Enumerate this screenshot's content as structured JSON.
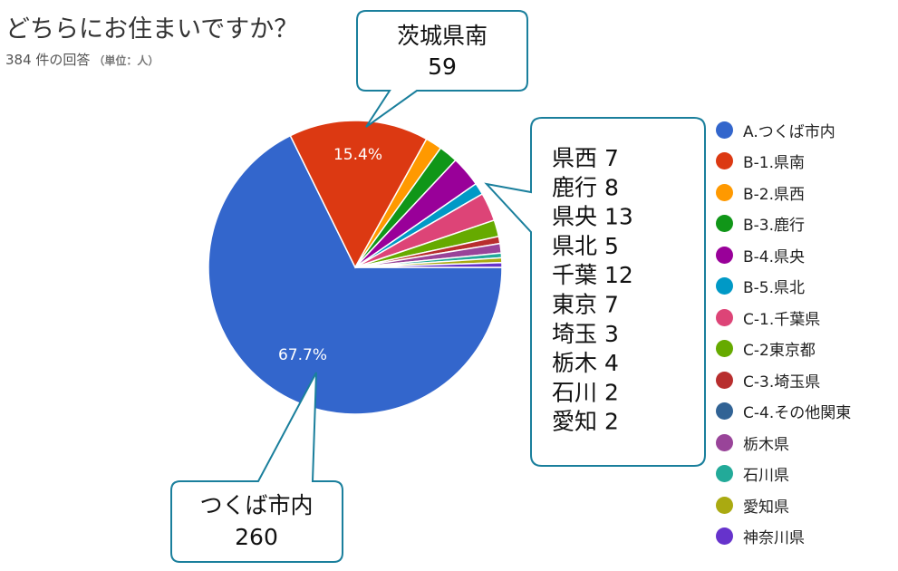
{
  "header": {
    "title": "どちらにお住まいですか？",
    "response_count": "384 件の回答",
    "unit_note": "（単位：人）"
  },
  "chart_data": {
    "type": "pie",
    "total": 384,
    "slices": [
      {
        "label": "A.つくば市内",
        "value": 260,
        "color": "#3366cc"
      },
      {
        "label": "B-1.県南",
        "value": 59,
        "color": "#dc3912"
      },
      {
        "label": "B-2.県西",
        "value": 7,
        "color": "#ff9900"
      },
      {
        "label": "B-3.鹿行",
        "value": 8,
        "color": "#109618"
      },
      {
        "label": "B-4.県央",
        "value": 13,
        "color": "#990099"
      },
      {
        "label": "B-5.県北",
        "value": 5,
        "color": "#0099c6"
      },
      {
        "label": "C-1.千葉県",
        "value": 12,
        "color": "#dd4477"
      },
      {
        "label": "C-2東京都",
        "value": 7,
        "color": "#66aa00"
      },
      {
        "label": "C-3.埼玉県",
        "value": 3,
        "color": "#b82e2e"
      },
      {
        "label": "C-4.その他関東",
        "value": 0,
        "color": "#316395"
      },
      {
        "label": "栃木県",
        "value": 4,
        "color": "#994499"
      },
      {
        "label": "石川県",
        "value": 2,
        "color": "#22aa99"
      },
      {
        "label": "愛知県",
        "value": 2,
        "color": "#aaaa11"
      },
      {
        "label": "神奈川県",
        "value": 2,
        "color": "#6633cc"
      }
    ],
    "data_labels": [
      "67.7%",
      "15.4%"
    ],
    "legend_position": "right"
  },
  "callouts": {
    "kennan": {
      "line1": "茨城県南",
      "line2": "59"
    },
    "tsukuba": {
      "line1": "つくば市内",
      "line2": "260"
    },
    "others": [
      "県西 7",
      "鹿行 8",
      "県央 13",
      "県北 5",
      "千葉 12",
      "東京 7",
      "埼玉 3",
      "栃木 4",
      "石川 2",
      "愛知 2"
    ]
  }
}
